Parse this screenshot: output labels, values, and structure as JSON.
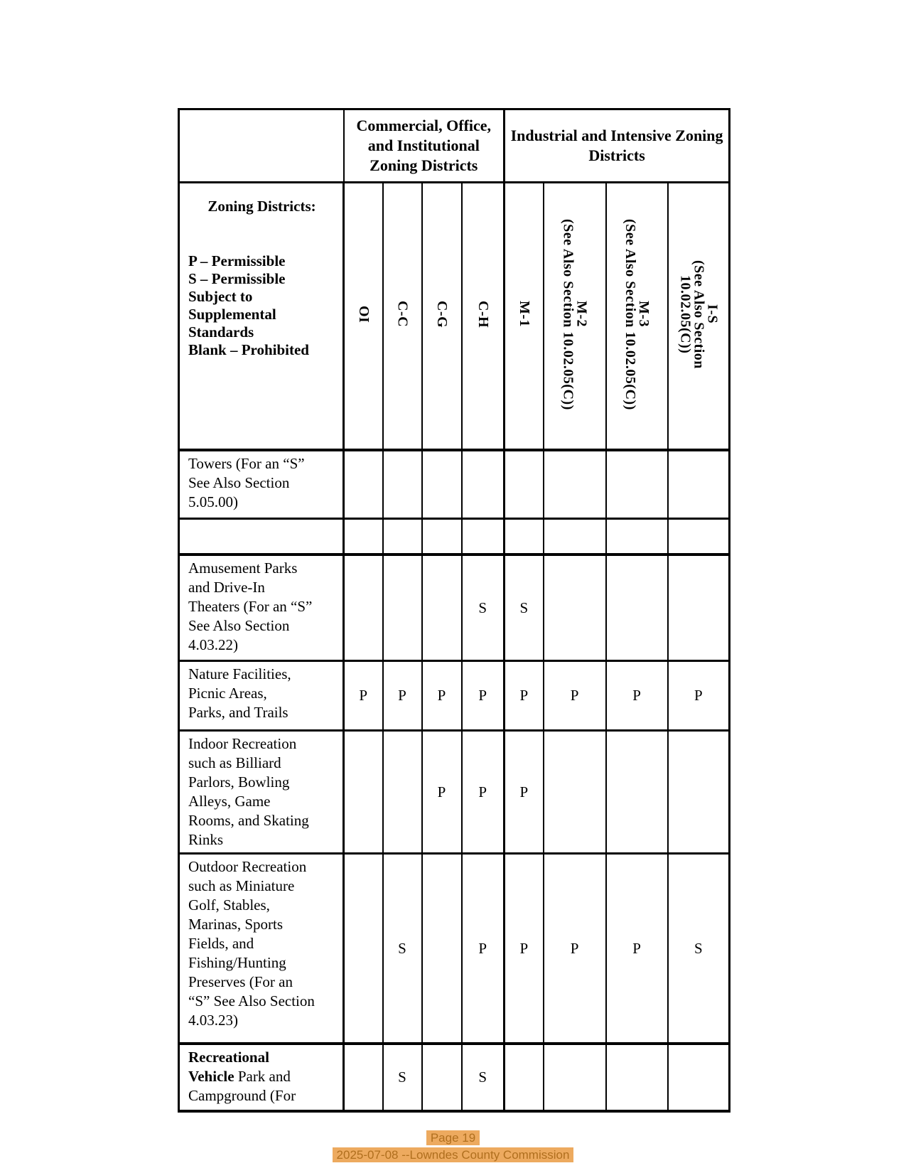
{
  "table": {
    "group_headers": [
      {
        "label": "Commercial, Office, and Institutional Zoning Districts"
      },
      {
        "label": "Industrial and Intensive Zoning Districts"
      }
    ],
    "legend": {
      "title": "Zoning Districts:",
      "lines": [
        "P – Permissible",
        "S – Permissible Subject to Supplemental Standards",
        "Blank – Prohibited"
      ]
    },
    "columns": [
      "OI",
      "C-C",
      "C-G",
      "C-H",
      "M-1",
      "M-2\n(See Also Section 10.02.05(C))",
      "M-3\n(See Also Section 10.02.05(C))",
      "I-S\n(See Also Section\n10.02.05(C))"
    ],
    "rows": [
      {
        "label": "Towers (For an “S”\nSee Also Section\n5.05.00)",
        "values": [
          "",
          "",
          "",
          "",
          "",
          "",
          "",
          ""
        ]
      },
      {
        "label": "",
        "values": [
          "",
          "",
          "",
          "",
          "",
          "",
          "",
          ""
        ]
      },
      {
        "label": "Amusement Parks\nand Drive-In\nTheaters (For an “S”\nSee Also Section\n4.03.22)",
        "values": [
          "",
          "",
          "",
          "S",
          "S",
          "",
          "",
          ""
        ]
      },
      {
        "label": "Nature Facilities,\nPicnic Areas,\nParks, and Trails",
        "values": [
          "P",
          "P",
          "P",
          "P",
          "P",
          "P",
          "P",
          "P"
        ]
      },
      {
        "label": "Indoor Recreation\nsuch as Billiard\nParlors, Bowling\nAlleys, Game\nRooms, and Skating\nRinks",
        "values": [
          "",
          "",
          "P",
          "P",
          "P",
          "",
          "",
          ""
        ]
      },
      {
        "label": "Outdoor Recreation\nsuch as Miniature\nGolf, Stables,\nMarinas, Sports\nFields, and\nFishing/Hunting\nPreserves (For an\n“S” See Also Section\n4.03.23)",
        "values": [
          "",
          "S",
          "",
          "P",
          "P",
          "P",
          "P",
          "S"
        ]
      },
      {
        "label_bold": "Recreational\nVehicle",
        "label": " Park and\nCampground (For",
        "values": [
          "",
          "S",
          "",
          "S",
          "",
          "",
          "",
          ""
        ]
      }
    ]
  },
  "footer": {
    "page_label": "Page 19",
    "doc_label": "2025-07-08 --Lowndes County Commission"
  },
  "colors": {
    "footer_highlight": "#edaa5f",
    "footer_text": "#b06f1e"
  }
}
